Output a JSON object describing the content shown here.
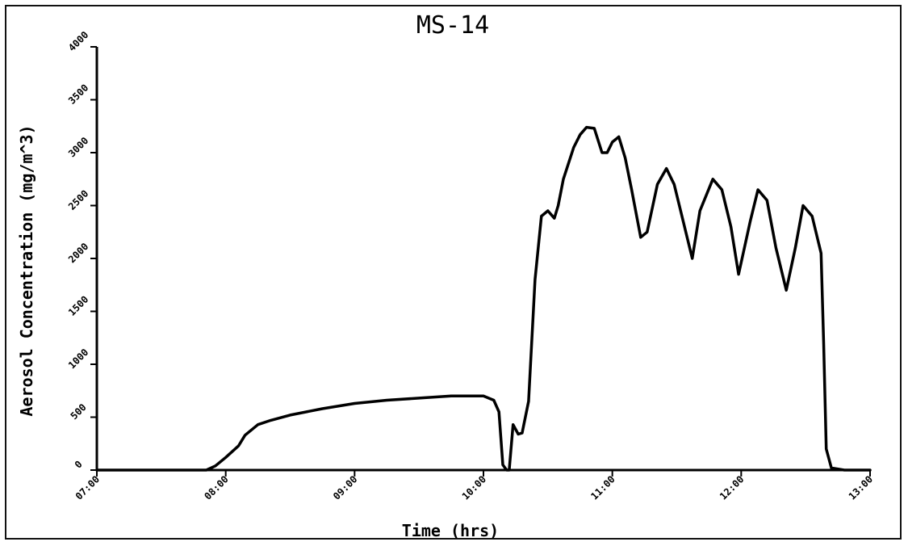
{
  "chart_data": {
    "type": "line",
    "title": "MS-14",
    "xlabel": "Time (hrs)",
    "ylabel": "Aerosol Concentration (mg/m^3)",
    "xlim": [
      7.0,
      13.0
    ],
    "ylim": [
      0,
      4000
    ],
    "xticks": [
      7,
      8,
      9,
      10,
      11,
      12,
      13
    ],
    "xtick_labels": [
      "07:00",
      "08:00",
      "09:00",
      "10:00",
      "11:00",
      "12:00",
      "13:00"
    ],
    "yticks": [
      0,
      500,
      1000,
      1500,
      2000,
      2500,
      3000,
      3500,
      4000
    ],
    "ytick_labels": [
      "0",
      "500",
      "1000",
      "1500",
      "2000",
      "2500",
      "3000",
      "3500",
      "4000"
    ],
    "grid": false,
    "series": [
      {
        "x": [
          7.0,
          7.5,
          7.85,
          7.92,
          8.0,
          8.1,
          8.15,
          8.25,
          8.35,
          8.5,
          8.75,
          9.0,
          9.25,
          9.5,
          9.75,
          10.0,
          10.08,
          10.12,
          10.15,
          10.18,
          10.2,
          10.23,
          10.27,
          10.3,
          10.35,
          10.4,
          10.45,
          10.5,
          10.55,
          10.58,
          10.62,
          10.7,
          10.75,
          10.8,
          10.86,
          10.92,
          10.96,
          11.0,
          11.05,
          11.1,
          11.15,
          11.22,
          11.27,
          11.35,
          11.42,
          11.48,
          11.55,
          11.62,
          11.68,
          11.78,
          11.85,
          11.92,
          11.98,
          12.07,
          12.13,
          12.2,
          12.27,
          12.35,
          12.42,
          12.48,
          12.55,
          12.62,
          12.64,
          12.66,
          12.7,
          12.8,
          13.0
        ],
        "y": [
          0,
          0,
          0,
          40,
          120,
          230,
          330,
          430,
          470,
          520,
          580,
          630,
          660,
          680,
          700,
          700,
          660,
          550,
          50,
          0,
          0,
          430,
          340,
          350,
          650,
          1800,
          2400,
          2450,
          2380,
          2500,
          2750,
          3050,
          3170,
          3240,
          3230,
          3000,
          3000,
          3100,
          3150,
          2950,
          2650,
          2200,
          2250,
          2700,
          2850,
          2700,
          2350,
          2000,
          2450,
          2750,
          2650,
          2300,
          1850,
          2350,
          2650,
          2550,
          2100,
          1700,
          2100,
          2500,
          2400,
          2050,
          1200,
          200,
          20,
          0,
          0
        ]
      }
    ]
  }
}
